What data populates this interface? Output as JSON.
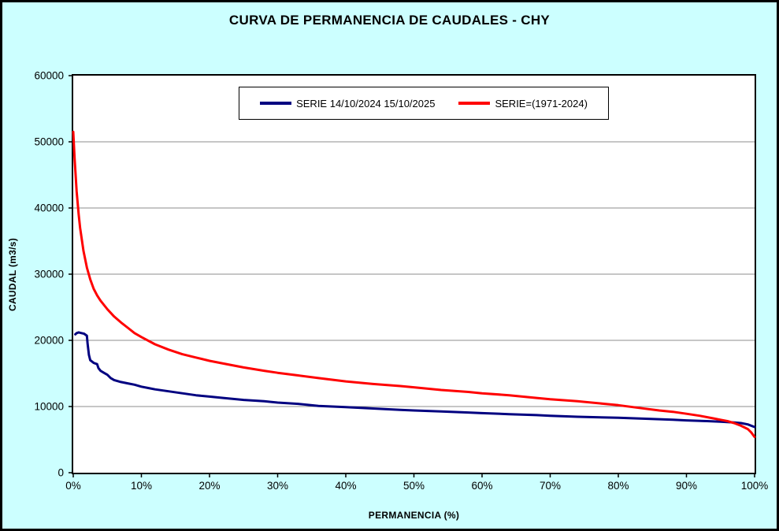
{
  "colors": {
    "background": "#CCFFFF",
    "plot_background": "#FFFFFF",
    "gridline": "#8C8C8C",
    "axis": "#000000",
    "series1": "#000080",
    "series2": "#FF0000"
  },
  "chart_data": {
    "type": "line",
    "title": "CURVA DE PERMANENCIA DE CAUDALES - CHY",
    "xlabel": "PERMANENCIA (%)",
    "ylabel": "CAUDAL (m3/s)",
    "xlim": [
      0,
      100
    ],
    "ylim": [
      0,
      60000
    ],
    "grid": "horizontal",
    "legend_position": "top-center-inside",
    "x_ticks": [
      {
        "label": "0%",
        "value": 0
      },
      {
        "label": "10%",
        "value": 10
      },
      {
        "label": "20%",
        "value": 20
      },
      {
        "label": "30%",
        "value": 30
      },
      {
        "label": "40%",
        "value": 40
      },
      {
        "label": "50%",
        "value": 50
      },
      {
        "label": "60%",
        "value": 60
      },
      {
        "label": "70%",
        "value": 70
      },
      {
        "label": "80%",
        "value": 80
      },
      {
        "label": "90%",
        "value": 90
      },
      {
        "label": "100%",
        "value": 100
      }
    ],
    "y_ticks": [
      {
        "label": "0",
        "value": 0
      },
      {
        "label": "10000",
        "value": 10000
      },
      {
        "label": "20000",
        "value": 20000
      },
      {
        "label": "30000",
        "value": 30000
      },
      {
        "label": "40000",
        "value": 40000
      },
      {
        "label": "50000",
        "value": 50000
      },
      {
        "label": "60000",
        "value": 60000
      }
    ],
    "series": [
      {
        "name": "SERIE 14/10/2024 15/10/2025",
        "color": "#000080",
        "points": [
          [
            0.3,
            20900
          ],
          [
            0.5,
            21100
          ],
          [
            0.8,
            21200
          ],
          [
            1.2,
            21100
          ],
          [
            1.6,
            21000
          ],
          [
            2.0,
            20700
          ],
          [
            2.1,
            19500
          ],
          [
            2.3,
            17800
          ],
          [
            2.5,
            17000
          ],
          [
            3.0,
            16600
          ],
          [
            3.5,
            16400
          ],
          [
            3.7,
            15800
          ],
          [
            4.0,
            15400
          ],
          [
            4.5,
            15100
          ],
          [
            5.0,
            14800
          ],
          [
            5.5,
            14300
          ],
          [
            6.0,
            14000
          ],
          [
            7.0,
            13700
          ],
          [
            8.0,
            13500
          ],
          [
            9.0,
            13300
          ],
          [
            10,
            13000
          ],
          [
            11,
            12800
          ],
          [
            12,
            12600
          ],
          [
            14,
            12300
          ],
          [
            16,
            12000
          ],
          [
            18,
            11700
          ],
          [
            20,
            11500
          ],
          [
            22,
            11300
          ],
          [
            25,
            11000
          ],
          [
            28,
            10800
          ],
          [
            30,
            10600
          ],
          [
            33,
            10400
          ],
          [
            36,
            10100
          ],
          [
            40,
            9900
          ],
          [
            44,
            9700
          ],
          [
            48,
            9500
          ],
          [
            50,
            9400
          ],
          [
            54,
            9250
          ],
          [
            58,
            9100
          ],
          [
            60,
            9000
          ],
          [
            64,
            8850
          ],
          [
            68,
            8700
          ],
          [
            70,
            8600
          ],
          [
            74,
            8450
          ],
          [
            78,
            8350
          ],
          [
            80,
            8300
          ],
          [
            84,
            8150
          ],
          [
            88,
            8000
          ],
          [
            90,
            7900
          ],
          [
            93,
            7800
          ],
          [
            95,
            7700
          ],
          [
            97,
            7600
          ],
          [
            98,
            7500
          ],
          [
            99,
            7300
          ],
          [
            100,
            6900
          ]
        ]
      },
      {
        "name": "SERIE=(1971-2024)",
        "color": "#FF0000",
        "points": [
          [
            0,
            51500
          ],
          [
            0.2,
            47500
          ],
          [
            0.5,
            42500
          ],
          [
            0.8,
            39000
          ],
          [
            1.0,
            37000
          ],
          [
            1.5,
            33500
          ],
          [
            2.0,
            31000
          ],
          [
            2.5,
            29200
          ],
          [
            3.0,
            27800
          ],
          [
            3.5,
            26800
          ],
          [
            4.0,
            26000
          ],
          [
            5.0,
            24700
          ],
          [
            6.0,
            23600
          ],
          [
            7.0,
            22700
          ],
          [
            8.0,
            21900
          ],
          [
            9.0,
            21100
          ],
          [
            10,
            20500
          ],
          [
            12,
            19400
          ],
          [
            14,
            18600
          ],
          [
            16,
            17900
          ],
          [
            18,
            17400
          ],
          [
            20,
            16900
          ],
          [
            22,
            16500
          ],
          [
            25,
            15900
          ],
          [
            28,
            15400
          ],
          [
            30,
            15100
          ],
          [
            33,
            14700
          ],
          [
            36,
            14300
          ],
          [
            40,
            13800
          ],
          [
            44,
            13400
          ],
          [
            48,
            13100
          ],
          [
            50,
            12900
          ],
          [
            54,
            12500
          ],
          [
            58,
            12200
          ],
          [
            60,
            12000
          ],
          [
            64,
            11700
          ],
          [
            68,
            11300
          ],
          [
            70,
            11100
          ],
          [
            74,
            10800
          ],
          [
            78,
            10400
          ],
          [
            80,
            10200
          ],
          [
            83,
            9800
          ],
          [
            86,
            9400
          ],
          [
            88,
            9200
          ],
          [
            90,
            8900
          ],
          [
            92,
            8600
          ],
          [
            94,
            8200
          ],
          [
            95,
            8000
          ],
          [
            96,
            7800
          ],
          [
            97,
            7500
          ],
          [
            98,
            7100
          ],
          [
            99,
            6600
          ],
          [
            99.5,
            6100
          ],
          [
            100,
            5400
          ]
        ]
      }
    ]
  }
}
